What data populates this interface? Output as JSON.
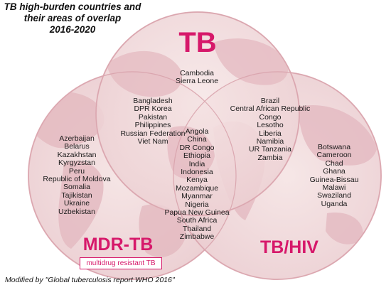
{
  "title": {
    "line1": "TB high-burden countries and",
    "line2": "their areas of overlap",
    "line3": "2016-2020"
  },
  "sets": {
    "tb": "TB",
    "mdr_tb": "MDR-TB",
    "mdr_tb_subtitle": "multidrug resistant TB",
    "tb_hiv": "TB/HIV"
  },
  "regions": {
    "tb_only": [
      "Cambodia",
      "Sierra Leone"
    ],
    "tb_mdr": [
      "Bangladesh",
      "DPR Korea",
      "Pakistan",
      "Philippines",
      "Russian Federation",
      "Viet Nam"
    ],
    "tb_hiv": [
      "Brazil",
      "Central African Republic",
      "Congo",
      "Lesotho",
      "Liberia",
      "Namibia",
      "UR Tanzania",
      "Zambia"
    ],
    "all_three": [
      "Angola",
      "China",
      "DR Congo",
      "Ethiopia",
      "India",
      "Indonesia",
      "Kenya",
      "Mozambique",
      "Myanmar",
      "Nigeria",
      "Papua New Guinea",
      "South Africa",
      "Thailand",
      "Zimbabwe"
    ],
    "mdr_only": [
      "Azerbaijan",
      "Belarus",
      "Kazakhstan",
      "Kyrgyzstan",
      "Peru",
      "Republic of Moldova",
      "Somalia",
      "Tajikistan",
      "Ukraine",
      "Uzbekistan"
    ],
    "hiv_only": [
      "Botswana",
      "Cameroon",
      "Chad",
      "Ghana",
      "Guinea-Bissau",
      "Malawi",
      "Swaziland",
      "Uganda"
    ]
  },
  "footnote": "Modified by \"Global tuberculosis report WHO 2016\"",
  "colors": {
    "accent": "#d6186a",
    "circle_fill": "#f2dede",
    "circle_stroke": "#e3b6bd",
    "land": "#e4b7be"
  }
}
